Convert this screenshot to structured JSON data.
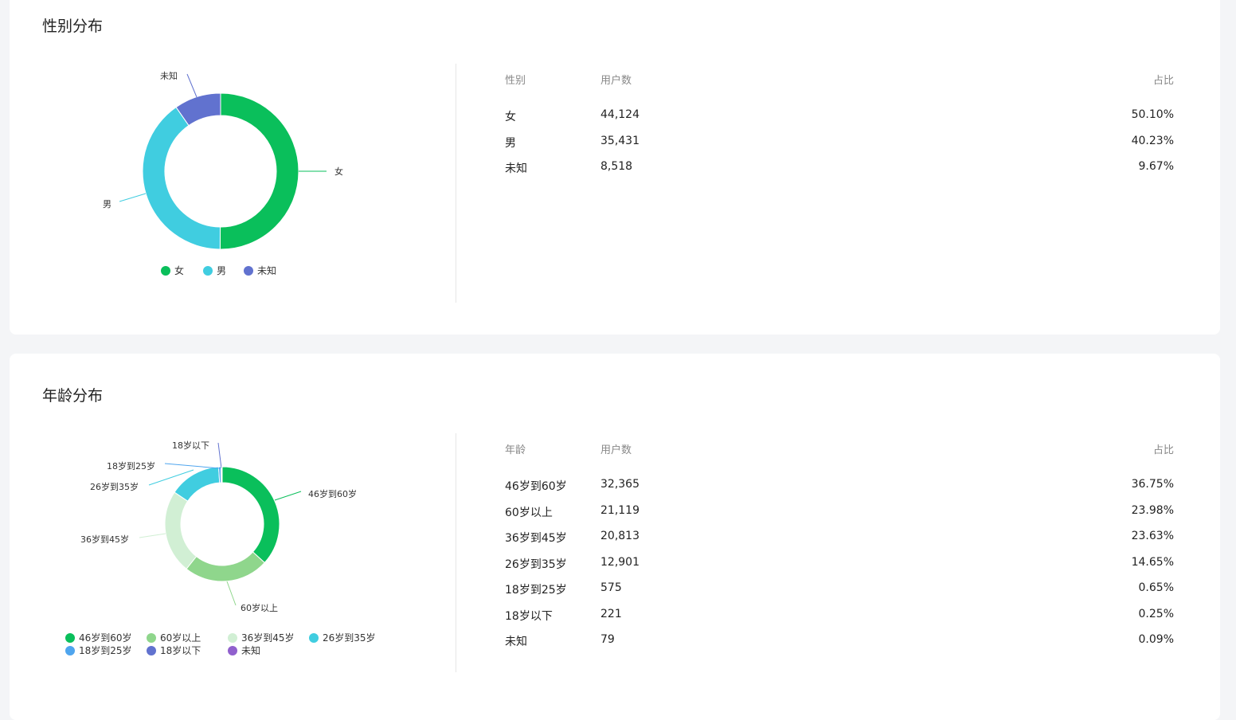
{
  "gender": {
    "title": "性别分布",
    "table": {
      "headers": [
        "性别",
        "用户数",
        "占比"
      ],
      "rows": [
        [
          "女",
          "44,124",
          "50.10%"
        ],
        [
          "男",
          "35,431",
          "40.23%"
        ],
        [
          "未知",
          "8,518",
          "9.67%"
        ]
      ]
    }
  },
  "age": {
    "title": "年龄分布",
    "table": {
      "headers": [
        "年龄",
        "用户数",
        "占比"
      ],
      "rows": [
        [
          "46岁到60岁",
          "32,365",
          "36.75%"
        ],
        [
          "60岁以上",
          "21,119",
          "23.98%"
        ],
        [
          "36岁到45岁",
          "20,813",
          "23.63%"
        ],
        [
          "26岁到35岁",
          "12,901",
          "14.65%"
        ],
        [
          "18岁到25岁",
          "575",
          "0.65%"
        ],
        [
          "18岁以下",
          "221",
          "0.25%"
        ],
        [
          "未知",
          "79",
          "0.09%"
        ]
      ]
    }
  },
  "chart_data": [
    {
      "type": "pie",
      "donut": true,
      "legend": "bottom",
      "categories": [
        "女",
        "男",
        "未知"
      ],
      "values": [
        44124,
        35431,
        8518
      ],
      "colors": [
        "#0abf5b",
        "#40cde0",
        "#6172cf"
      ]
    },
    {
      "type": "pie",
      "donut": true,
      "legend": "bottom",
      "categories": [
        "46岁到60岁",
        "60岁以上",
        "36岁到45岁",
        "26岁到35岁",
        "18岁到25岁",
        "18岁以下",
        "未知"
      ],
      "values": [
        32365,
        21119,
        20813,
        12901,
        575,
        221,
        79
      ],
      "colors": [
        "#0abf5b",
        "#8fd68c",
        "#d1efd4",
        "#40cde0",
        "#4fa5ee",
        "#6172cf",
        "#9060cd"
      ]
    }
  ]
}
